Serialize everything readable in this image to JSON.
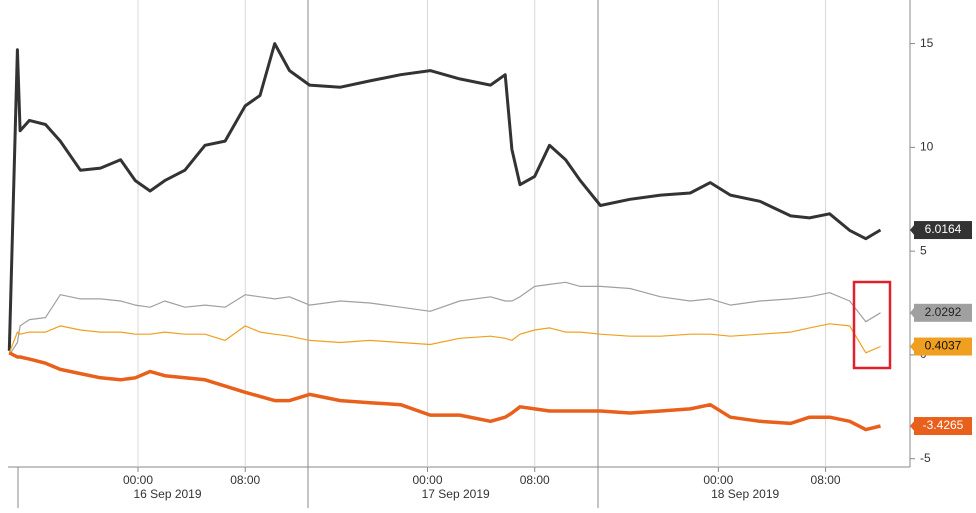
{
  "chart_data": {
    "type": "line",
    "x": [
      -9.6,
      -9.0,
      -8.8,
      -8.1,
      -6.9,
      -5.8,
      -4.3,
      -2.8,
      -1.3,
      -0.2,
      0.9,
      2.0,
      3.5,
      5.0,
      6.5,
      8.0,
      9.1,
      10.2,
      11.3,
      12.8,
      15.1,
      17.3,
      19.6,
      21.8,
      24.0,
      26.3,
      27.4,
      27.9,
      28.5,
      29.6,
      30.7,
      31.9,
      33.0,
      34.5,
      36.7,
      39.0,
      41.2,
      42.7,
      44.2,
      46.4,
      48.7,
      50.1,
      51.6,
      53.1,
      54.3,
      55.4
    ],
    "series": [
      {
        "color": "#333333",
        "values": [
          0.2,
          14.7,
          10.8,
          11.3,
          11.1,
          10.3,
          8.9,
          9.0,
          9.4,
          8.4,
          7.9,
          8.4,
          8.9,
          10.1,
          10.3,
          12.0,
          12.5,
          15.0,
          13.7,
          13.0,
          12.9,
          13.2,
          13.5,
          13.7,
          13.3,
          13.0,
          13.5,
          9.9,
          8.2,
          8.6,
          10.1,
          9.4,
          8.4,
          7.2,
          7.5,
          7.7,
          7.8,
          8.3,
          7.7,
          7.4,
          6.7,
          6.6,
          6.8,
          6.0,
          5.6,
          6.0164
        ]
      },
      {
        "color": "#a0a0a0",
        "values": [
          0.0,
          0.6,
          1.4,
          1.7,
          1.8,
          2.9,
          2.7,
          2.7,
          2.6,
          2.4,
          2.3,
          2.6,
          2.3,
          2.4,
          2.3,
          2.9,
          2.8,
          2.7,
          2.8,
          2.4,
          2.6,
          2.5,
          2.3,
          2.1,
          2.6,
          2.8,
          2.6,
          2.6,
          2.8,
          3.3,
          3.4,
          3.5,
          3.3,
          3.3,
          3.2,
          2.8,
          2.6,
          2.7,
          2.4,
          2.6,
          2.7,
          2.8,
          3.0,
          2.6,
          1.6,
          2.0292
        ]
      },
      {
        "color": "#f0a020",
        "values": [
          0.1,
          1.1,
          1.0,
          1.1,
          1.1,
          1.4,
          1.2,
          1.1,
          1.1,
          1.0,
          1.0,
          1.1,
          1.0,
          1.0,
          0.7,
          1.4,
          1.1,
          1.0,
          0.9,
          0.7,
          0.6,
          0.7,
          0.6,
          0.5,
          0.8,
          0.9,
          0.8,
          0.7,
          1.0,
          1.2,
          1.3,
          1.1,
          1.1,
          1.0,
          0.9,
          0.9,
          1.0,
          1.0,
          0.9,
          1.0,
          1.1,
          1.3,
          1.5,
          1.4,
          0.1,
          0.4037
        ]
      },
      {
        "color": "#e8601c",
        "values": [
          0.1,
          -0.1,
          -0.1,
          -0.2,
          -0.4,
          -0.7,
          -0.9,
          -1.1,
          -1.2,
          -1.1,
          -0.8,
          -1.0,
          -1.1,
          -1.2,
          -1.5,
          -1.8,
          -2.0,
          -2.2,
          -2.2,
          -1.9,
          -2.2,
          -2.3,
          -2.4,
          -2.9,
          -2.9,
          -3.2,
          -3.0,
          -2.8,
          -2.5,
          -2.6,
          -2.7,
          -2.7,
          -2.7,
          -2.7,
          -2.8,
          -2.7,
          -2.6,
          -2.4,
          -3.0,
          -3.2,
          -3.3,
          -3.0,
          -3.0,
          -3.2,
          -3.6,
          -3.4265
        ]
      }
    ],
    "xlim": [
      -9.7,
      57.6
    ],
    "xticks": [
      {
        "value": 0,
        "label": "00:00"
      },
      {
        "value": 8,
        "label": "08:00"
      },
      {
        "value": 21.6,
        "label": "00:00"
      },
      {
        "value": 29.6,
        "label": "08:00"
      },
      {
        "value": 43.3,
        "label": "00:00"
      },
      {
        "value": 51.3,
        "label": "08:00"
      }
    ],
    "date_labels": [
      {
        "value": 2.2,
        "label": "16 Sep 2019"
      },
      {
        "value": 23.7,
        "label": "17 Sep 2019"
      },
      {
        "value": 45.3,
        "label": "18 Sep 2019"
      }
    ],
    "ylim": [
      -5.4,
      17.1
    ],
    "yticks": [
      -5,
      0,
      5,
      10,
      15
    ]
  }
}
